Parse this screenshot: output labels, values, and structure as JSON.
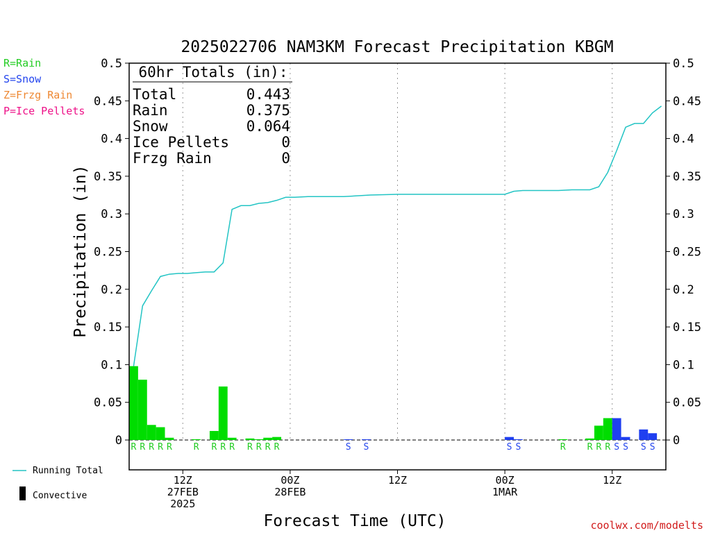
{
  "chart_data": {
    "type": "bar",
    "title": "2025022706 NAM3KM Forecast Precipitation KBGM",
    "xlabel": "Forecast Time (UTC)",
    "ylabel": "Precipitation (in)",
    "ylim": [
      0,
      0.5
    ],
    "xlim_hours": [
      0,
      60
    ],
    "yticks": [
      "0",
      "0.05",
      "0.1",
      "0.15",
      "0.2",
      "0.25",
      "0.3",
      "0.35",
      "0.4",
      "0.45",
      "0.5"
    ],
    "xticks": [
      {
        "hour": 6,
        "lines": [
          "12Z",
          "27FEB",
          "2025"
        ]
      },
      {
        "hour": 18,
        "lines": [
          "00Z",
          "28FEB"
        ]
      },
      {
        "hour": 30,
        "lines": [
          "12Z"
        ]
      },
      {
        "hour": 42,
        "lines": [
          "00Z",
          "1MAR"
        ]
      },
      {
        "hour": 54,
        "lines": [
          "12Z"
        ]
      }
    ],
    "totals_box": {
      "heading": "60hr Totals (in):",
      "rows": [
        {
          "label": "Total",
          "value": "0.443"
        },
        {
          "label": "Rain",
          "value": "0.375"
        },
        {
          "label": "Snow",
          "value": "0.064"
        },
        {
          "label": "Ice Pellets",
          "value": "0"
        },
        {
          "label": "Frzg Rain",
          "value": "0"
        }
      ]
    },
    "type_legend": [
      {
        "text": "R=Rain",
        "color": "#22cc22"
      },
      {
        "text": "S=Snow",
        "color": "#2244ee"
      },
      {
        "text": "Z=Frzg Rain",
        "color": "#ee8833"
      },
      {
        "text": "P=Ice Pellets",
        "color": "#ee1188"
      }
    ],
    "bottom_legend": [
      {
        "key": "running",
        "text": "Running Total",
        "color": "#22c4c4"
      },
      {
        "key": "convective",
        "text": "Convective",
        "color": "#000000"
      }
    ],
    "watermark": "coolwx.com/modelts",
    "colors": {
      "rain": "#00dd00",
      "snow": "#1f3ff0",
      "running_total": "#22c4c4"
    },
    "bars": [
      {
        "hour": 1,
        "value": 0.098,
        "type": "R"
      },
      {
        "hour": 2,
        "value": 0.08,
        "type": "R"
      },
      {
        "hour": 3,
        "value": 0.02,
        "type": "R"
      },
      {
        "hour": 4,
        "value": 0.017,
        "type": "R"
      },
      {
        "hour": 5,
        "value": 0.003,
        "type": "R"
      },
      {
        "hour": 8,
        "value": 0.001,
        "type": "R"
      },
      {
        "hour": 10,
        "value": 0.012,
        "type": "R"
      },
      {
        "hour": 11,
        "value": 0.071,
        "type": "R"
      },
      {
        "hour": 12,
        "value": 0.003,
        "type": "R"
      },
      {
        "hour": 14,
        "value": 0.002,
        "type": "R"
      },
      {
        "hour": 15,
        "value": 0.001,
        "type": "R"
      },
      {
        "hour": 16,
        "value": 0.003,
        "type": "R"
      },
      {
        "hour": 17,
        "value": 0.004,
        "type": "R"
      },
      {
        "hour": 25,
        "value": 0.0005,
        "type": "S"
      },
      {
        "hour": 27,
        "value": 0.0005,
        "type": "S"
      },
      {
        "hour": 43,
        "value": 0.004,
        "type": "S"
      },
      {
        "hour": 44,
        "value": 0.001,
        "type": "S"
      },
      {
        "hour": 49,
        "value": 0.001,
        "type": "R"
      },
      {
        "hour": 52,
        "value": 0.002,
        "type": "R"
      },
      {
        "hour": 53,
        "value": 0.019,
        "type": "R"
      },
      {
        "hour": 54,
        "value": 0.029,
        "type": "R"
      },
      {
        "hour": 55,
        "value": 0.029,
        "type": "S"
      },
      {
        "hour": 56,
        "value": 0.004,
        "type": "S"
      },
      {
        "hour": 58,
        "value": 0.014,
        "type": "S"
      },
      {
        "hour": 59,
        "value": 0.009,
        "type": "S"
      }
    ],
    "running_total": {
      "x": [
        0.5,
        1.5,
        2.5,
        3.5,
        4.5,
        5.5,
        6.5,
        7.5,
        8.5,
        9.5,
        10.5,
        11.5,
        12.5,
        13.5,
        14.5,
        15.5,
        16.5,
        17.5,
        18.5,
        20.0,
        24.0,
        27.0,
        30.0,
        42.0,
        43.0,
        44.0,
        48.0,
        49.5,
        51.5,
        52.5,
        53.5,
        54.5,
        55.5,
        56.5,
        57.5,
        58.5,
        59.5
      ],
      "y": [
        0.098,
        0.178,
        0.198,
        0.217,
        0.22,
        0.221,
        0.221,
        0.222,
        0.223,
        0.223,
        0.235,
        0.306,
        0.311,
        0.311,
        0.314,
        0.315,
        0.318,
        0.322,
        0.322,
        0.323,
        0.323,
        0.325,
        0.326,
        0.326,
        0.33,
        0.331,
        0.331,
        0.332,
        0.332,
        0.336,
        0.355,
        0.384,
        0.415,
        0.42,
        0.42,
        0.434,
        0.443
      ]
    }
  }
}
